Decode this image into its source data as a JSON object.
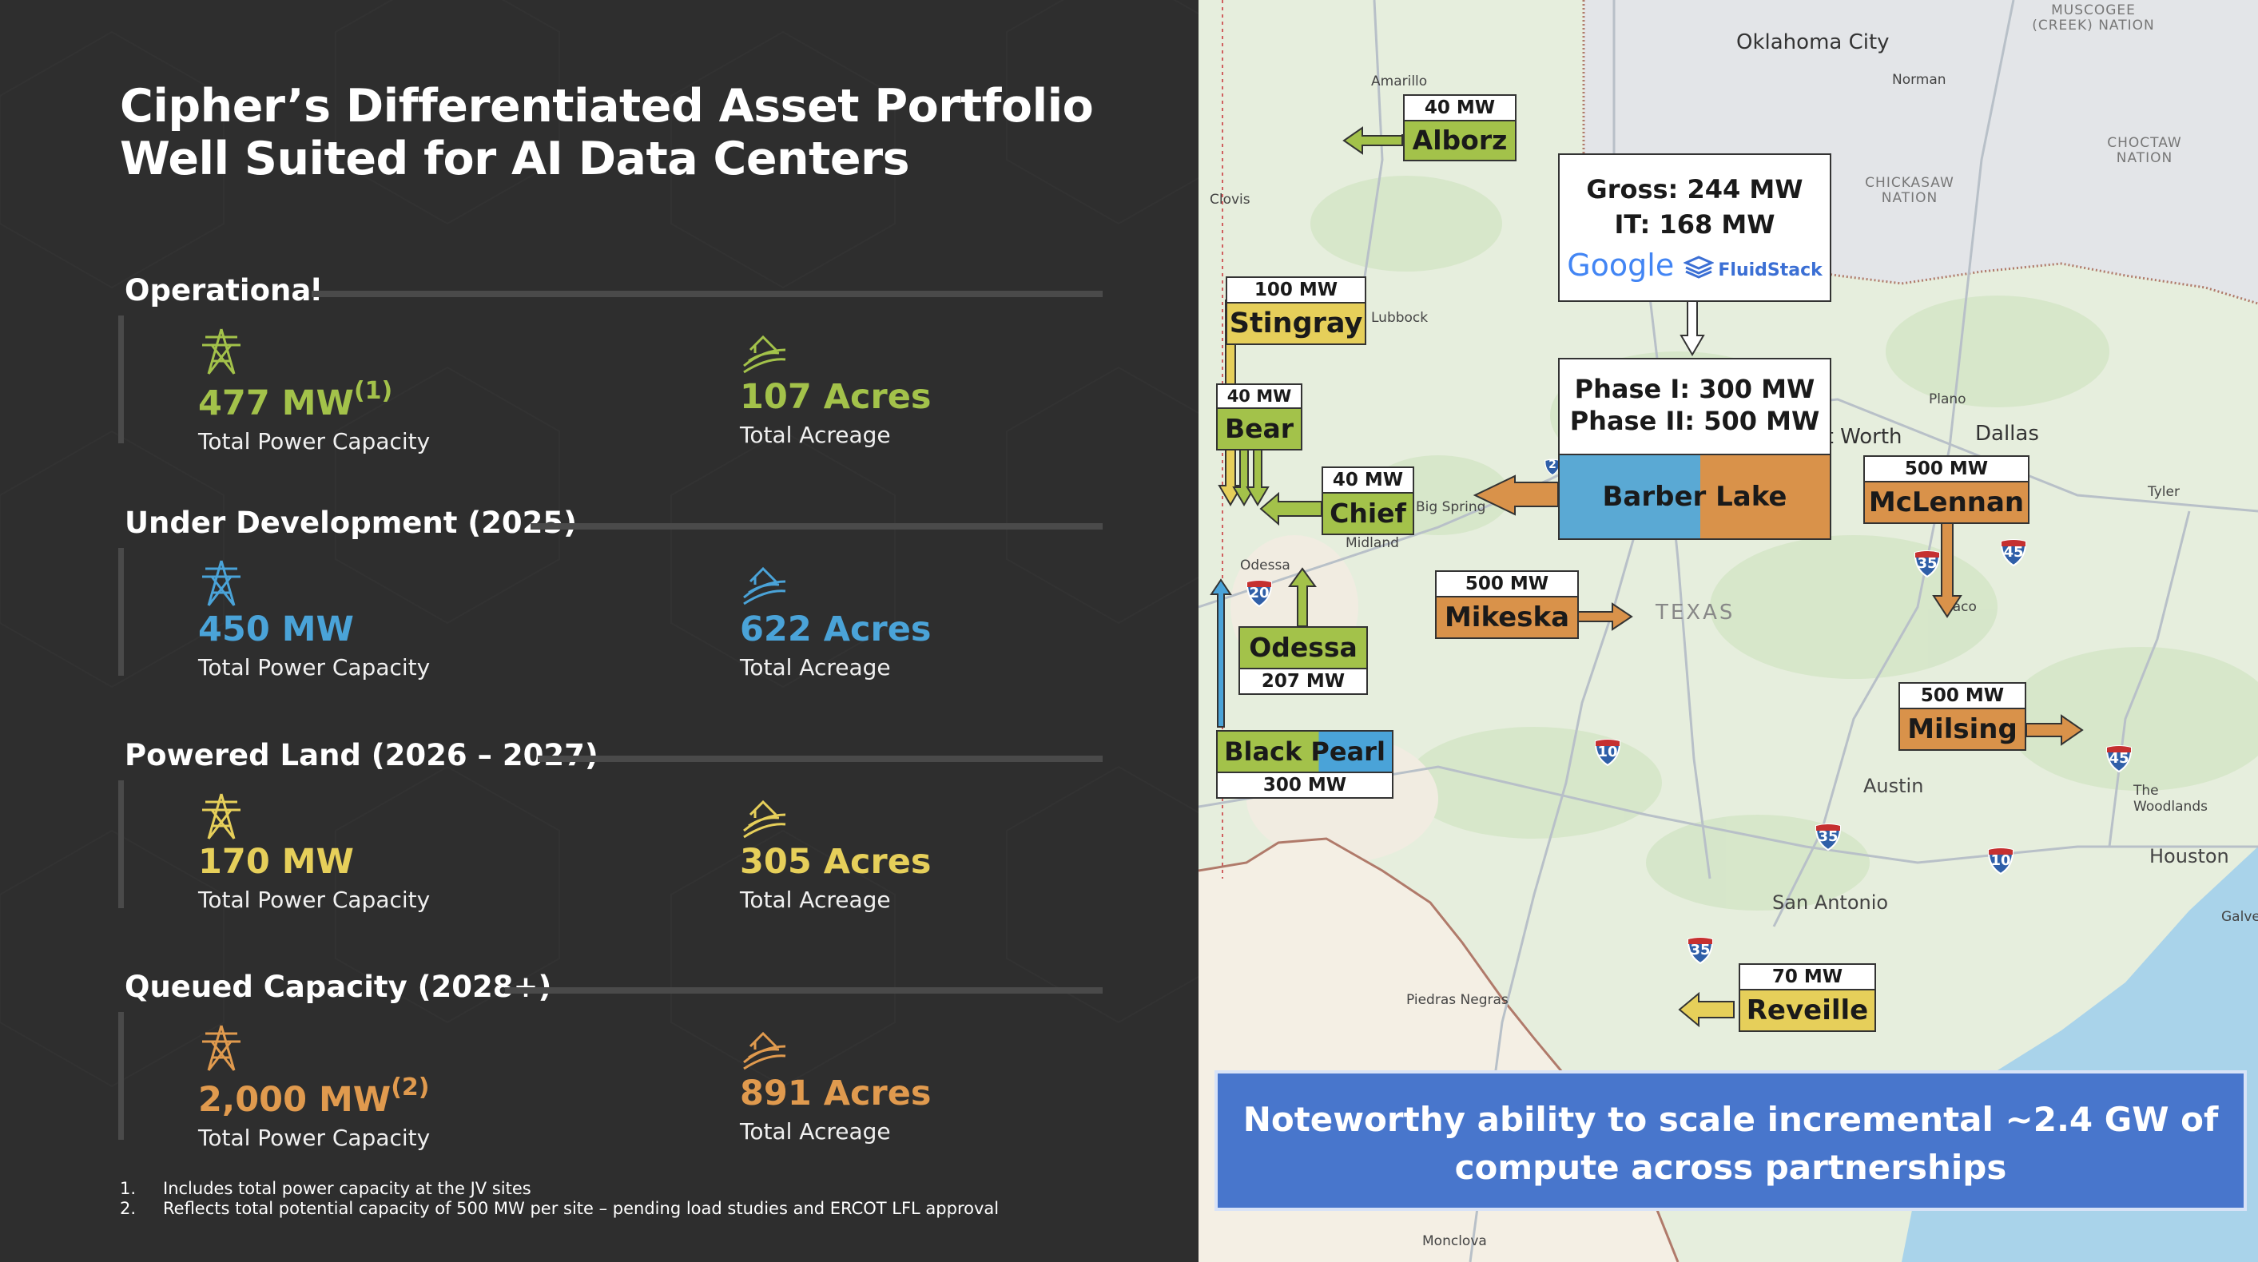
{
  "title": {
    "line1": "Cipher’s Differentiated Asset Portfolio",
    "line2": "Well Suited for AI Data Centers"
  },
  "sections": [
    {
      "heading": "Operational",
      "mw_value": "477 MW",
      "mw_note": "(1)",
      "mw_label": "Total Power Capacity",
      "acre_value": "107 Acres",
      "acre_label": "Total Acreage",
      "color": "#a3c24a"
    },
    {
      "heading": "Under Development (2025)",
      "mw_value": "450 MW",
      "mw_note": "",
      "mw_label": "Total Power Capacity",
      "acre_value": "622 Acres",
      "acre_label": "Total Acreage",
      "color": "#4aa3d8"
    },
    {
      "heading": "Powered Land (2026 – 2027)",
      "mw_value": "170 MW",
      "mw_note": "",
      "mw_label": "Total Power Capacity",
      "acre_value": "305 Acres",
      "acre_label": "Total Acreage",
      "color": "#e6cf5a"
    },
    {
      "heading": "Queued Capacity (2028+)",
      "mw_value": "2,000 MW",
      "mw_note": "(2)",
      "mw_label": "Total Power Capacity",
      "acre_value": "891 Acres",
      "acre_label": "Total Acreage",
      "color": "#e09a4e"
    }
  ],
  "footnotes": [
    {
      "num": "1.",
      "text": "Includes total power capacity at the JV sites"
    },
    {
      "num": "2.",
      "text": "Reflects total potential capacity of 500 MW per site – pending load studies and ERCOT LFL approval"
    }
  ],
  "map": {
    "cities": {
      "oklahoma_city": "Oklahoma City",
      "norman": "Norman",
      "amarillo": "Amarillo",
      "clovis": "Clovis",
      "lubbock": "Lubbock",
      "big_spring": "Big Spring",
      "midland": "Midland",
      "odessa": "Odessa",
      "plano": "Plano",
      "dallas": "Dallas",
      "fort_worth": "Fort Worth",
      "tyler": "Tyler",
      "waco": "Waco",
      "texas": "TEXAS",
      "austin": "Austin",
      "the_woodlands_1": "The",
      "the_woodlands_2": "Woodlands",
      "houston": "Houston",
      "galveston": "Galves",
      "san_antonio": "San Antonio",
      "piedras_negras": "Piedras Negras",
      "monclova": "Monclova"
    },
    "nations": {
      "muscogee_1": "MUSCOGEE",
      "muscogee_2": "(CREEK) NATION",
      "choctaw_1": "CHOCTAW",
      "choctaw_2": "NATION",
      "chickasaw_1": "CHICKASAW",
      "chickasaw_2": "NATION"
    },
    "shields": {
      "i20": "20",
      "i10a": "10",
      "i35a": "35",
      "i45a": "45",
      "i35b": "35",
      "i10b": "10",
      "i45b": "45",
      "i35c": "35",
      "i2": "2"
    },
    "sites": {
      "alborz": {
        "name": "Alborz",
        "mw": "40 MW"
      },
      "stingray": {
        "name": "Stingray",
        "mw": "100 MW"
      },
      "bear": {
        "name": "Bear",
        "mw": "40 MW"
      },
      "chief": {
        "name": "Chief",
        "mw": "40 MW"
      },
      "odessa": {
        "name": "Odessa",
        "mw": "207 MW"
      },
      "black_pearl": {
        "name_a": "Black",
        "name_b": " Pearl",
        "mw": "300 MW"
      },
      "mikeska": {
        "name": "Mikeska",
        "mw": "500 MW"
      },
      "mclennan": {
        "name": "McLennan",
        "mw": "500 MW"
      },
      "milsing": {
        "name": "Milsing",
        "mw": "500 MW"
      },
      "reveille": {
        "name": "Reveille",
        "mw": "70 MW"
      },
      "barber_lake": {
        "name": "Barber Lake",
        "phase1": "Phase I: 300 MW",
        "phase2": "Phase II: 500 MW"
      }
    },
    "partner_box": {
      "gross": "Gross: 244 MW",
      "it": "IT: 168 MW",
      "google": "Google",
      "fluidstack": "FluidStack"
    }
  },
  "banner": {
    "line1": "Noteworthy ability to scale incremental ~2.4 GW of",
    "line2": "compute across partnerships"
  },
  "colors": {
    "green": "#a3c24a",
    "blue": "#4aa3d8",
    "yellow": "#e6cf5a",
    "orange": "#d9924a",
    "banner": "#4876cc"
  }
}
